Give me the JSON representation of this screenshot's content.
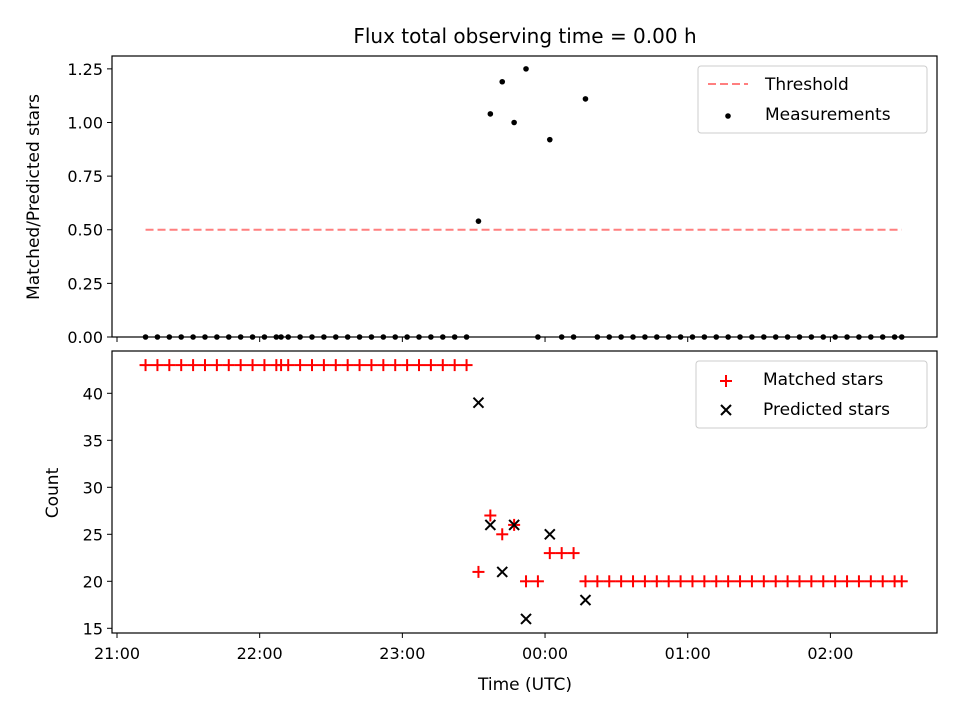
{
  "chart_data": [
    {
      "type": "scatter",
      "title": "Flux total observing time = 0.00 h",
      "xlabel": "",
      "ylabel": "Matched/Predicted stars",
      "ylim": [
        0.0,
        1.31
      ],
      "yticks": [
        0.0,
        0.25,
        0.5,
        0.75,
        1.0,
        1.25
      ],
      "ytick_labels": [
        "0.00",
        "0.25",
        "0.50",
        "0.75",
        "1.00",
        "1.25"
      ],
      "legend_position": "upper right",
      "series": [
        {
          "name": "Threshold",
          "kind": "dashed-line",
          "color": "#ff7f7f",
          "x": [
            "21:12",
            "02:30"
          ],
          "y": [
            0.5,
            0.5
          ]
        },
        {
          "name": "Measurements",
          "kind": "dots",
          "color": "#000000",
          "x": [
            "21:12",
            "21:17",
            "21:22",
            "21:27",
            "21:32",
            "21:37",
            "21:42",
            "21:47",
            "21:52",
            "21:57",
            "22:02",
            "22:07",
            "22:09",
            "22:12",
            "22:17",
            "22:22",
            "22:27",
            "22:32",
            "22:37",
            "22:42",
            "22:47",
            "22:52",
            "22:57",
            "23:02",
            "23:07",
            "23:12",
            "23:17",
            "23:22",
            "23:27",
            "23:32",
            "23:37",
            "23:42",
            "23:47",
            "23:52",
            "23:57",
            "00:02",
            "00:07",
            "00:12",
            "00:17",
            "00:22",
            "00:27",
            "00:32",
            "00:37",
            "00:42",
            "00:47",
            "00:52",
            "00:57",
            "01:02",
            "01:07",
            "01:12",
            "01:17",
            "01:22",
            "01:27",
            "01:32",
            "01:37",
            "01:42",
            "01:47",
            "01:52",
            "01:57",
            "02:02",
            "02:07",
            "02:12",
            "02:17",
            "02:22",
            "02:27",
            "02:30"
          ],
          "y": [
            0,
            0,
            0,
            0,
            0,
            0,
            0,
            0,
            0,
            0,
            0,
            0,
            0,
            0,
            0,
            0,
            0,
            0,
            0,
            0,
            0,
            0,
            0,
            0,
            0,
            0,
            0,
            0,
            0,
            0.54,
            1.04,
            1.19,
            1.0,
            1.25,
            0,
            0.92,
            0,
            0,
            1.11,
            0,
            0,
            0,
            0,
            0,
            0,
            0,
            0,
            0,
            0,
            0,
            0,
            0,
            0,
            0,
            0,
            0,
            0,
            0,
            0,
            0,
            0,
            0,
            0,
            0,
            0,
            0
          ]
        }
      ]
    },
    {
      "type": "scatter",
      "title": "",
      "xlabel": "Time (UTC)",
      "ylabel": "Count",
      "ylim": [
        14.5,
        44.5
      ],
      "yticks": [
        15,
        20,
        25,
        30,
        35,
        40
      ],
      "ytick_labels": [
        "15",
        "20",
        "25",
        "30",
        "35",
        "40"
      ],
      "xticks": [
        "21:00",
        "22:00",
        "23:00",
        "00:00",
        "01:00",
        "02:00"
      ],
      "legend_position": "upper right",
      "series": [
        {
          "name": "Matched stars",
          "marker": "plus",
          "color": "#ff0000",
          "x": [
            "21:12",
            "21:17",
            "21:22",
            "21:27",
            "21:32",
            "21:37",
            "21:42",
            "21:47",
            "21:52",
            "21:57",
            "22:02",
            "22:07",
            "22:09",
            "22:12",
            "22:17",
            "22:22",
            "22:27",
            "22:32",
            "22:37",
            "22:42",
            "22:47",
            "22:52",
            "22:57",
            "23:02",
            "23:07",
            "23:12",
            "23:17",
            "23:22",
            "23:27",
            "23:32",
            "23:37",
            "23:42",
            "23:47",
            "23:52",
            "23:57",
            "00:02",
            "00:07",
            "00:12",
            "00:17",
            "00:22",
            "00:27",
            "00:32",
            "00:37",
            "00:42",
            "00:47",
            "00:52",
            "00:57",
            "01:02",
            "01:07",
            "01:12",
            "01:17",
            "01:22",
            "01:27",
            "01:32",
            "01:37",
            "01:42",
            "01:47",
            "01:52",
            "01:57",
            "02:02",
            "02:07",
            "02:12",
            "02:17",
            "02:22",
            "02:27",
            "02:30"
          ],
          "y": [
            43,
            43,
            43,
            43,
            43,
            43,
            43,
            43,
            43,
            43,
            43,
            43,
            43,
            43,
            43,
            43,
            43,
            43,
            43,
            43,
            43,
            43,
            43,
            43,
            43,
            43,
            43,
            43,
            43,
            21,
            27,
            25,
            26,
            20,
            20,
            23,
            23,
            23,
            20,
            20,
            20,
            20,
            20,
            20,
            20,
            20,
            20,
            20,
            20,
            20,
            20,
            20,
            20,
            20,
            20,
            20,
            20,
            20,
            20,
            20,
            20,
            20,
            20,
            20,
            20,
            20
          ]
        },
        {
          "name": "Predicted stars",
          "marker": "x",
          "color": "#000000",
          "x": [
            "23:32",
            "23:37",
            "23:42",
            "23:47",
            "23:52",
            "00:02",
            "00:17"
          ],
          "y": [
            39,
            26,
            21,
            26,
            16,
            25,
            18
          ]
        }
      ]
    }
  ]
}
